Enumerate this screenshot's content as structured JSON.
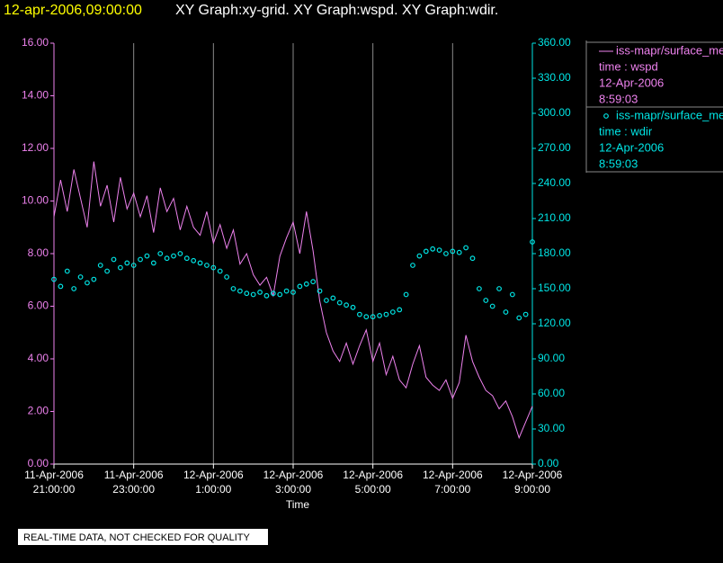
{
  "chart_data": {
    "type": "line",
    "title_time": "12-apr-2006,09:00:00",
    "title": "XY Graph:xy-grid.  XY Graph:wspd.  XY Graph:wdir.",
    "x_label": "Time",
    "notice": "REAL-TIME DATA, NOT CHECKED FOR QUALITY",
    "grid": true,
    "x": [
      "2006-04-11T21:00",
      "2006-04-11T21:10",
      "2006-04-11T21:20",
      "2006-04-11T21:30",
      "2006-04-11T21:40",
      "2006-04-11T21:50",
      "2006-04-11T22:00",
      "2006-04-11T22:10",
      "2006-04-11T22:20",
      "2006-04-11T22:30",
      "2006-04-11T22:40",
      "2006-04-11T22:50",
      "2006-04-11T23:00",
      "2006-04-11T23:10",
      "2006-04-11T23:20",
      "2006-04-11T23:30",
      "2006-04-11T23:40",
      "2006-04-11T23:50",
      "2006-04-12T00:00",
      "2006-04-12T00:10",
      "2006-04-12T00:20",
      "2006-04-12T00:30",
      "2006-04-12T00:40",
      "2006-04-12T00:50",
      "2006-04-12T01:00",
      "2006-04-12T01:10",
      "2006-04-12T01:20",
      "2006-04-12T01:30",
      "2006-04-12T01:40",
      "2006-04-12T01:50",
      "2006-04-12T02:00",
      "2006-04-12T02:10",
      "2006-04-12T02:20",
      "2006-04-12T02:30",
      "2006-04-12T02:40",
      "2006-04-12T02:50",
      "2006-04-12T03:00",
      "2006-04-12T03:10",
      "2006-04-12T03:20",
      "2006-04-12T03:30",
      "2006-04-12T03:40",
      "2006-04-12T03:50",
      "2006-04-12T04:00",
      "2006-04-12T04:10",
      "2006-04-12T04:20",
      "2006-04-12T04:30",
      "2006-04-12T04:40",
      "2006-04-12T04:50",
      "2006-04-12T05:00",
      "2006-04-12T05:10",
      "2006-04-12T05:20",
      "2006-04-12T05:30",
      "2006-04-12T05:40",
      "2006-04-12T05:50",
      "2006-04-12T06:00",
      "2006-04-12T06:10",
      "2006-04-12T06:20",
      "2006-04-12T06:30",
      "2006-04-12T06:40",
      "2006-04-12T06:50",
      "2006-04-12T07:00",
      "2006-04-12T07:10",
      "2006-04-12T07:20",
      "2006-04-12T07:30",
      "2006-04-12T07:40",
      "2006-04-12T07:50",
      "2006-04-12T08:00",
      "2006-04-12T08:10",
      "2006-04-12T08:20",
      "2006-04-12T08:30",
      "2006-04-12T08:40",
      "2006-04-12T08:50",
      "2006-04-12T09:00"
    ],
    "xlim": [
      "2006-04-11T21:00",
      "2006-04-12T09:00"
    ],
    "xticks": [
      {
        "value": "2006-04-11T21:00",
        "label": [
          "11-Apr-2006",
          "21:00:00"
        ]
      },
      {
        "value": "2006-04-11T23:00",
        "label": [
          "11-Apr-2006",
          "23:00:00"
        ]
      },
      {
        "value": "2006-04-12T01:00",
        "label": [
          "12-Apr-2006",
          "1:00:00"
        ]
      },
      {
        "value": "2006-04-12T03:00",
        "label": [
          "12-Apr-2006",
          "3:00:00"
        ]
      },
      {
        "value": "2006-04-12T05:00",
        "label": [
          "12-Apr-2006",
          "5:00:00"
        ]
      },
      {
        "value": "2006-04-12T07:00",
        "label": [
          "12-Apr-2006",
          "7:00:00"
        ]
      },
      {
        "value": "2006-04-12T09:00",
        "label": [
          "12-Apr-2006",
          "9:00:00"
        ]
      }
    ],
    "ylim": [
      0,
      16
    ],
    "yticks": [
      {
        "value": 0,
        "label": "0.00"
      },
      {
        "value": 2,
        "label": "2.00"
      },
      {
        "value": 4,
        "label": "4.00"
      },
      {
        "value": 6,
        "label": "6.00"
      },
      {
        "value": 8,
        "label": "8.00"
      },
      {
        "value": 10,
        "label": "10.00"
      },
      {
        "value": 12,
        "label": "12.00"
      },
      {
        "value": 14,
        "label": "14.00"
      },
      {
        "value": 16,
        "label": "16.00"
      }
    ],
    "y2lim": [
      0,
      360
    ],
    "y2ticks": [
      {
        "value": 0,
        "label": "0.00"
      },
      {
        "value": 30,
        "label": "30.00"
      },
      {
        "value": 60,
        "label": "60.00"
      },
      {
        "value": 90,
        "label": "90.00"
      },
      {
        "value": 120,
        "label": "120.00"
      },
      {
        "value": 150,
        "label": "150.00"
      },
      {
        "value": 180,
        "label": "180.00"
      },
      {
        "value": 210,
        "label": "210.00"
      },
      {
        "value": 240,
        "label": "240.00"
      },
      {
        "value": 270,
        "label": "270.00"
      },
      {
        "value": 300,
        "label": "300.00"
      },
      {
        "value": 330,
        "label": "330.00"
      },
      {
        "value": 360,
        "label": "360.00"
      }
    ],
    "series": [
      {
        "name": "iss-mapr/surface_met",
        "color": "#ee82ee",
        "marker": "line",
        "axis": "y",
        "legend_info": [
          "time : wspd",
          "12-Apr-2006",
          "8:59:03"
        ],
        "values": [
          9.4,
          10.8,
          9.6,
          11.2,
          10.1,
          9.0,
          11.5,
          9.8,
          10.6,
          9.2,
          10.9,
          9.7,
          10.3,
          9.4,
          10.2,
          8.8,
          10.5,
          9.6,
          10.1,
          8.9,
          9.8,
          9.0,
          8.7,
          9.6,
          8.4,
          9.1,
          8.2,
          8.9,
          7.6,
          8.0,
          7.2,
          6.8,
          7.1,
          6.4,
          7.9,
          8.6,
          9.2,
          8.0,
          9.6,
          8.1,
          6.2,
          5.0,
          4.3,
          3.9,
          4.6,
          3.8,
          4.5,
          5.1,
          3.9,
          4.6,
          3.4,
          4.1,
          3.2,
          2.9,
          3.8,
          4.5,
          3.3,
          3.0,
          2.8,
          3.2,
          2.5,
          3.1,
          4.9,
          3.9,
          3.3,
          2.8,
          2.6,
          2.1,
          2.4,
          1.8,
          1.0,
          1.6,
          2.2
        ]
      },
      {
        "name": "iss-mapr/surface_met",
        "color": "#00e5e5",
        "marker": "circle",
        "axis": "y2",
        "legend_info": [
          "time : wdir",
          "12-Apr-2006",
          "8:59:03"
        ],
        "values": [
          158,
          152,
          165,
          150,
          160,
          155,
          158,
          170,
          165,
          175,
          168,
          172,
          170,
          175,
          178,
          172,
          180,
          176,
          178,
          180,
          176,
          174,
          172,
          170,
          168,
          165,
          160,
          150,
          148,
          146,
          145,
          147,
          144,
          146,
          145,
          148,
          147,
          152,
          154,
          156,
          148,
          140,
          142,
          138,
          136,
          134,
          128,
          126,
          126,
          127,
          128,
          130,
          132,
          145,
          170,
          178,
          182,
          184,
          183,
          180,
          182,
          181,
          185,
          176,
          150,
          140,
          135,
          150,
          130,
          145,
          125,
          128,
          190
        ]
      }
    ]
  }
}
